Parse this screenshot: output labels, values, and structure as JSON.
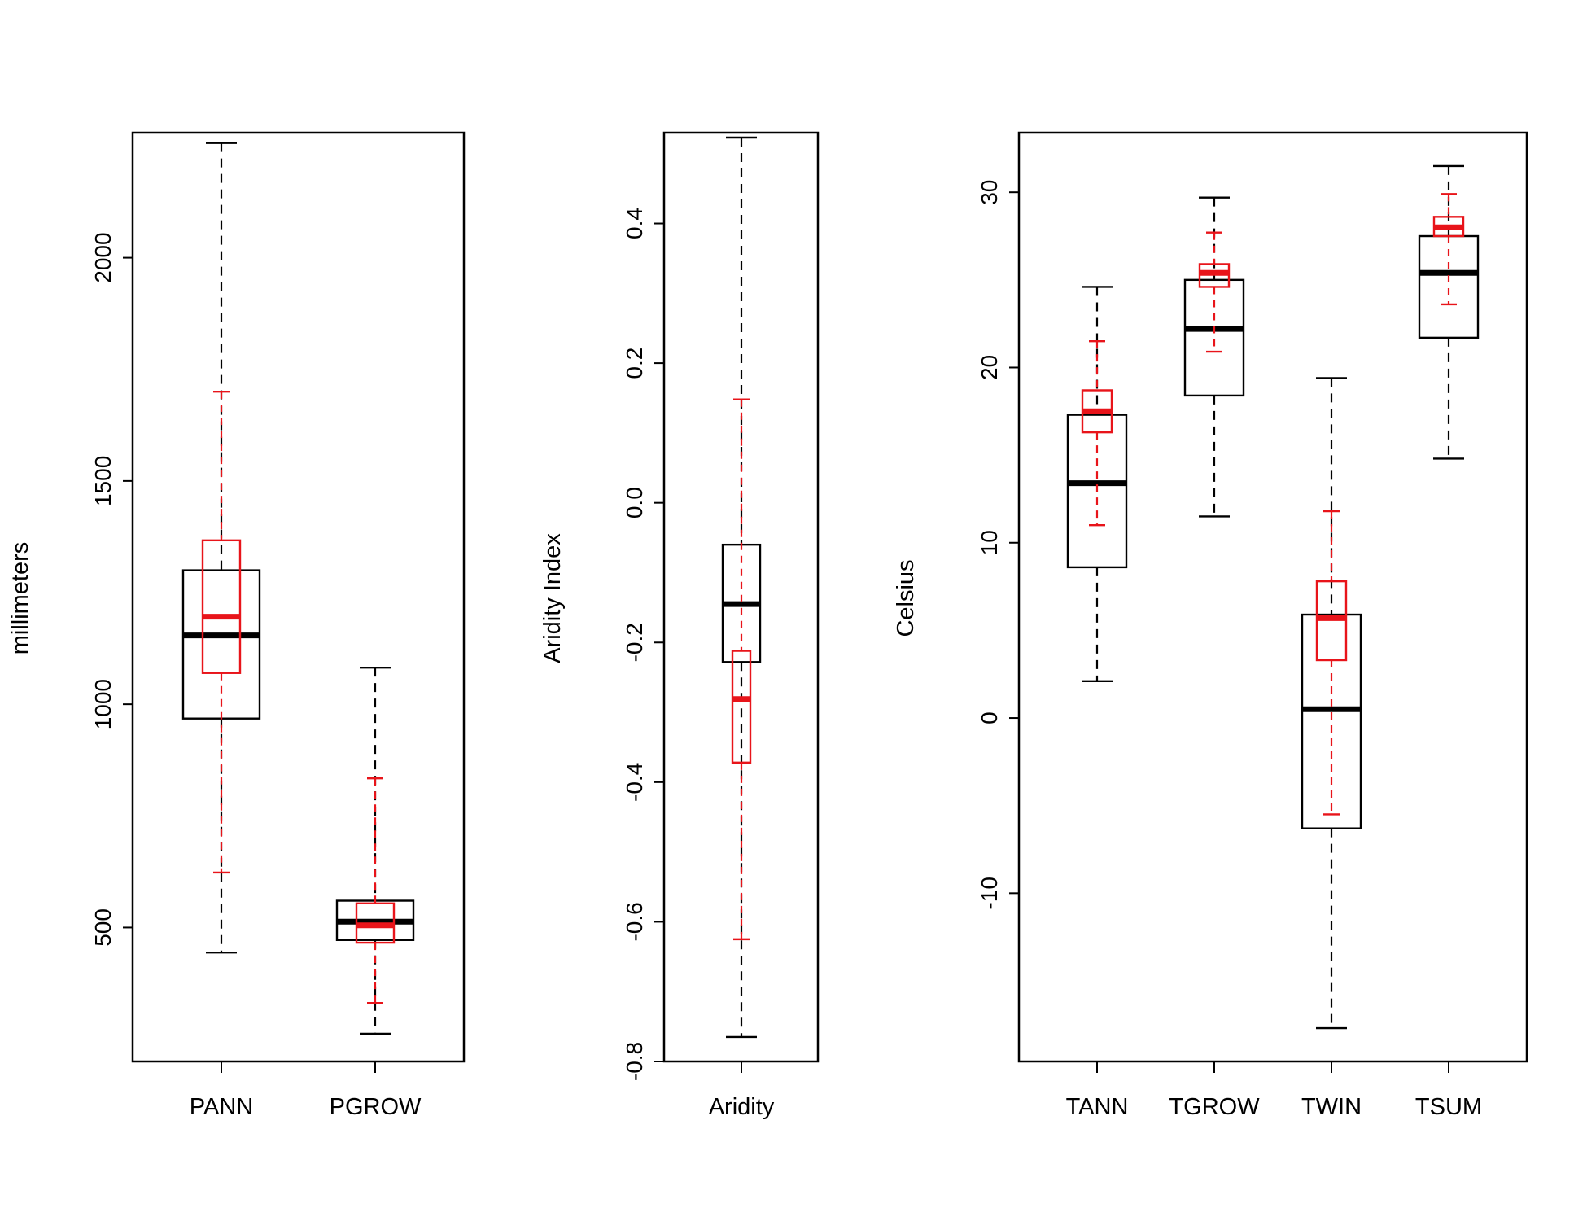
{
  "colors": {
    "black": "#000000",
    "red": "#e8141a"
  },
  "chart_data": [
    {
      "type": "boxplot",
      "ylabel": "millimeters",
      "ylim": [
        200,
        2280
      ],
      "yticks": [
        500,
        1000,
        1500,
        2000
      ],
      "ytick_labels": [
        "500",
        "1000",
        "1500",
        "2000"
      ],
      "categories": [
        "PANN",
        "PGROW"
      ],
      "series": [
        {
          "name": "black",
          "boxes": [
            {
              "whisker_low": 444,
              "q1": 968,
              "median": 1154,
              "q3": 1300,
              "whisker_high": 2257
            },
            {
              "whisker_low": 262,
              "q1": 472,
              "median": 513,
              "q3": 560,
              "whisker_high": 1082
            }
          ]
        },
        {
          "name": "red",
          "boxes": [
            {
              "whisker_low": 623,
              "q1": 1070,
              "median": 1196,
              "q3": 1367,
              "whisker_high": 1700
            },
            {
              "whisker_low": 331,
              "q1": 466,
              "median": 505,
              "q3": 554,
              "whisker_high": 834
            }
          ]
        }
      ]
    },
    {
      "type": "boxplot",
      "ylabel": "Aridity Index",
      "ylim": [
        -0.8,
        0.53
      ],
      "yticks": [
        -0.8,
        -0.6,
        -0.4,
        -0.2,
        0.0,
        0.2,
        0.4
      ],
      "ytick_labels": [
        "-0.8",
        "-0.6",
        "-0.4",
        "-0.2",
        "0.0",
        "0.2",
        "0.4"
      ],
      "categories": [
        "Aridity"
      ],
      "series": [
        {
          "name": "black",
          "boxes": [
            {
              "whisker_low": -0.765,
              "q1": -0.228,
              "median": -0.145,
              "q3": -0.06,
              "whisker_high": 0.523
            }
          ]
        },
        {
          "name": "red",
          "boxes": [
            {
              "whisker_low": -0.625,
              "q1": -0.372,
              "median": -0.281,
              "q3": -0.212,
              "whisker_high": 0.148
            }
          ]
        }
      ]
    },
    {
      "type": "boxplot",
      "ylabel": "Celsius",
      "ylim": [
        -19.6,
        33.4
      ],
      "yticks": [
        -10,
        0,
        10,
        20,
        30
      ],
      "ytick_labels": [
        "-10",
        "0",
        "10",
        "20",
        "30"
      ],
      "categories": [
        "TANN",
        "TGROW",
        "TWIN",
        "TSUM"
      ],
      "series": [
        {
          "name": "black",
          "boxes": [
            {
              "whisker_low": 2.1,
              "q1": 8.6,
              "median": 13.4,
              "q3": 17.3,
              "whisker_high": 24.6
            },
            {
              "whisker_low": 11.5,
              "q1": 18.4,
              "median": 22.2,
              "q3": 25.0,
              "whisker_high": 29.7
            },
            {
              "whisker_low": -17.7,
              "q1": -6.3,
              "median": 0.5,
              "q3": 5.9,
              "whisker_high": 19.4
            },
            {
              "whisker_low": 14.8,
              "q1": 21.7,
              "median": 25.4,
              "q3": 27.5,
              "whisker_high": 31.5
            }
          ]
        },
        {
          "name": "red",
          "boxes": [
            {
              "whisker_low": 11.0,
              "q1": 16.3,
              "median": 17.5,
              "q3": 18.7,
              "whisker_high": 21.5
            },
            {
              "whisker_low": 20.9,
              "q1": 24.6,
              "median": 25.4,
              "q3": 25.9,
              "whisker_high": 27.7
            },
            {
              "whisker_low": -5.5,
              "q1": 3.3,
              "median": 5.7,
              "q3": 7.8,
              "whisker_high": 11.8
            },
            {
              "whisker_low": 23.6,
              "q1": 27.5,
              "median": 28.0,
              "q3": 28.6,
              "whisker_high": 29.9
            }
          ]
        }
      ]
    }
  ]
}
